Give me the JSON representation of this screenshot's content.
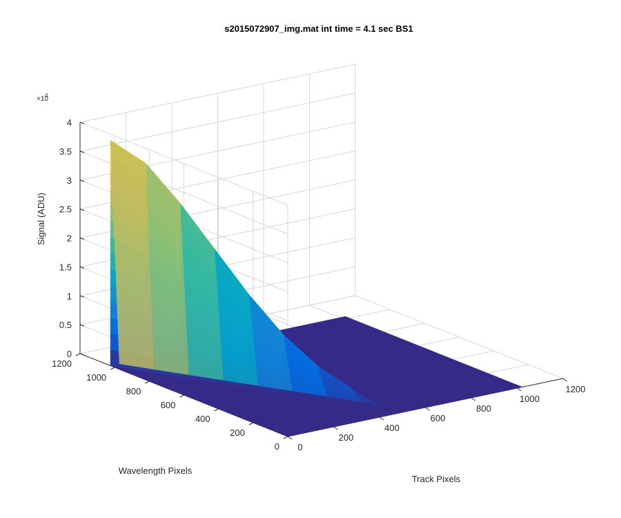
{
  "chart_data": {
    "type": "surface",
    "title": "s2015072907_img.mat int time = 4.1 sec   BS1",
    "xlabel": "Track Pixels",
    "ylabel": "Wavelength Pixels",
    "zlabel": "Signal (ADU)",
    "z_multiplier_label": "×10",
    "z_multiplier_exponent": "4",
    "xlim": [
      0,
      1200
    ],
    "ylim": [
      0,
      1200
    ],
    "zlim": [
      0,
      40000
    ],
    "x_ticks": [
      "0",
      "200",
      "400",
      "600",
      "800",
      "1000",
      "1200"
    ],
    "y_ticks": [
      "0",
      "200",
      "400",
      "600",
      "800",
      "1000",
      "1200"
    ],
    "z_ticks": [
      "0",
      "0.5",
      "1",
      "1.5",
      "2",
      "2.5",
      "3",
      "3.5",
      "4"
    ],
    "x_tick_values": [
      0,
      200,
      400,
      600,
      800,
      1000,
      1200
    ],
    "y_tick_values": [
      0,
      200,
      400,
      600,
      800,
      1000,
      1200
    ],
    "z_tick_values": [
      0,
      5000,
      10000,
      15000,
      20000,
      25000,
      30000,
      35000,
      40000
    ],
    "surface_extent": {
      "x": [
        0,
        1024
      ],
      "y": [
        0,
        1024
      ]
    },
    "peak": {
      "x": 0,
      "y": 1024,
      "z": 39000
    },
    "signal_ridge": [
      {
        "x": 0,
        "y": 1024,
        "z": 39000
      },
      {
        "x": 60,
        "y": 900,
        "z": 36000
      },
      {
        "x": 120,
        "y": 780,
        "z": 30000
      },
      {
        "x": 180,
        "y": 660,
        "z": 23000
      },
      {
        "x": 240,
        "y": 540,
        "z": 16000
      },
      {
        "x": 300,
        "y": 420,
        "z": 10000
      },
      {
        "x": 360,
        "y": 300,
        "z": 5500
      },
      {
        "x": 420,
        "y": 180,
        "z": 2500
      },
      {
        "x": 460,
        "y": 100,
        "z": 800
      },
      {
        "x": 500,
        "y": 30,
        "z": 0
      }
    ],
    "colormap": "parula",
    "grid": true,
    "floor_color": "#352a87"
  }
}
